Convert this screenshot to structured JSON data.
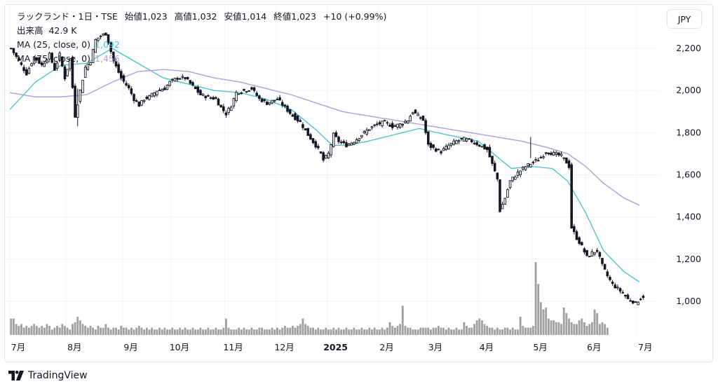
{
  "header": {
    "symbol_title": "ラックランド・1日・TSE",
    "open": "始値1,023",
    "high": "高値1,032",
    "low": "安値1,014",
    "close": "終値1,023",
    "change": "+10 (+0.99%)",
    "volume": "出来高  42.9 K",
    "ma25_label": "MA (25, close, 0)",
    "ma25_value": "1,092",
    "ma75_label": "MA (75, close, 0)",
    "ma75_value": "1,456",
    "currency": "JPY"
  },
  "colors": {
    "ma25": "#4fc3d0",
    "ma75": "#b39ddb",
    "candle": "#131722",
    "volume": "#909090",
    "grid": "#f0f3fa"
  },
  "branding": "TradingView",
  "chart_data": {
    "type": "candlestick",
    "title": "ラックランド・1日・TSE",
    "currency": "JPY",
    "ylim": [
      900,
      2330
    ],
    "y_ticks": [
      1000,
      1200,
      1400,
      1600,
      1800,
      2000,
      2200
    ],
    "y_tick_labels": [
      "1,000",
      "1,200",
      "1,400",
      "1,600",
      "1,800",
      "2,000",
      "2,200"
    ],
    "x_ticks": [
      {
        "label": "7月",
        "bar": 0
      },
      {
        "label": "8月",
        "bar": 22
      },
      {
        "label": "9月",
        "bar": 44
      },
      {
        "label": "10月",
        "bar": 63
      },
      {
        "label": "11月",
        "bar": 84
      },
      {
        "label": "12月",
        "bar": 104
      },
      {
        "label": "2025",
        "bar": 124,
        "bold": true
      },
      {
        "label": "2月",
        "bar": 144
      },
      {
        "label": "3月",
        "bar": 163
      },
      {
        "label": "4月",
        "bar": 183
      },
      {
        "label": "5月",
        "bar": 204
      },
      {
        "label": "6月",
        "bar": 225
      },
      {
        "label": "7月",
        "bar": 245
      }
    ],
    "close_anchors": [
      [
        0,
        2200
      ],
      [
        3,
        2140
      ],
      [
        6,
        2080
      ],
      [
        9,
        2160
      ],
      [
        12,
        2120
      ],
      [
        15,
        2170
      ],
      [
        17,
        2100
      ],
      [
        19,
        2170
      ],
      [
        21,
        2060
      ],
      [
        23,
        2150
      ],
      [
        25,
        1880
      ],
      [
        27,
        2000
      ],
      [
        29,
        2110
      ],
      [
        31,
        2140
      ],
      [
        33,
        2240
      ],
      [
        35,
        2260
      ],
      [
        37,
        2270
      ],
      [
        38,
        2230
      ],
      [
        40,
        2140
      ],
      [
        43,
        2060
      ],
      [
        46,
        2010
      ],
      [
        48,
        1960
      ],
      [
        50,
        1930
      ],
      [
        52,
        1960
      ],
      [
        54,
        1970
      ],
      [
        57,
        2000
      ],
      [
        60,
        2010
      ],
      [
        62,
        2040
      ],
      [
        65,
        2060
      ],
      [
        68,
        2060
      ],
      [
        71,
        2020
      ],
      [
        74,
        1980
      ],
      [
        77,
        1970
      ],
      [
        80,
        1960
      ],
      [
        82,
        1920
      ],
      [
        84,
        1890
      ],
      [
        86,
        1930
      ],
      [
        88,
        1990
      ],
      [
        91,
        2000
      ],
      [
        94,
        2010
      ],
      [
        97,
        1960
      ],
      [
        100,
        1940
      ],
      [
        104,
        1960
      ],
      [
        107,
        1920
      ],
      [
        110,
        1880
      ],
      [
        113,
        1850
      ],
      [
        116,
        1790
      ],
      [
        119,
        1740
      ],
      [
        121,
        1700
      ],
      [
        122,
        1670
      ],
      [
        124,
        1700
      ],
      [
        126,
        1790
      ],
      [
        128,
        1760
      ],
      [
        131,
        1740
      ],
      [
        134,
        1760
      ],
      [
        137,
        1790
      ],
      [
        140,
        1820
      ],
      [
        143,
        1840
      ],
      [
        146,
        1850
      ],
      [
        149,
        1830
      ],
      [
        152,
        1840
      ],
      [
        155,
        1860
      ],
      [
        157,
        1900
      ],
      [
        159,
        1880
      ],
      [
        161,
        1860
      ],
      [
        163,
        1740
      ],
      [
        166,
        1720
      ],
      [
        168,
        1710
      ],
      [
        171,
        1740
      ],
      [
        174,
        1760
      ],
      [
        177,
        1770
      ],
      [
        180,
        1760
      ],
      [
        183,
        1740
      ],
      [
        186,
        1720
      ],
      [
        188,
        1650
      ],
      [
        190,
        1580
      ],
      [
        191,
        1430
      ],
      [
        193,
        1490
      ],
      [
        195,
        1570
      ],
      [
        198,
        1610
      ],
      [
        201,
        1640
      ],
      [
        204,
        1660
      ],
      [
        207,
        1680
      ],
      [
        209,
        1710
      ],
      [
        212,
        1700
      ],
      [
        215,
        1690
      ],
      [
        217,
        1660
      ],
      [
        218,
        1640
      ],
      [
        219,
        1350
      ],
      [
        221,
        1300
      ],
      [
        223,
        1260
      ],
      [
        225,
        1210
      ],
      [
        227,
        1230
      ],
      [
        229,
        1240
      ],
      [
        231,
        1170
      ],
      [
        233,
        1120
      ],
      [
        235,
        1080
      ],
      [
        237,
        1060
      ],
      [
        239,
        1040
      ],
      [
        241,
        1010
      ],
      [
        243,
        1000
      ],
      [
        244,
        990
      ],
      [
        246,
        1015
      ],
      [
        247,
        1023
      ]
    ],
    "candle_volatility": 22,
    "highlight_wicks": [
      {
        "bar": 26,
        "high": 2010,
        "low": 1830
      },
      {
        "bar": 203,
        "high": 1780,
        "low": 1680
      }
    ],
    "series": [
      {
        "name": "MA (25, close, 0)",
        "color": "#4fc3d0",
        "points": [
          [
            0,
            1910
          ],
          [
            10,
            2040
          ],
          [
            20,
            2120
          ],
          [
            30,
            2130
          ],
          [
            40,
            2200
          ],
          [
            50,
            2130
          ],
          [
            60,
            2060
          ],
          [
            70,
            2030
          ],
          [
            80,
            2000
          ],
          [
            90,
            1990
          ],
          [
            100,
            1960
          ],
          [
            110,
            1910
          ],
          [
            120,
            1810
          ],
          [
            126,
            1740
          ],
          [
            132,
            1740
          ],
          [
            140,
            1760
          ],
          [
            150,
            1790
          ],
          [
            160,
            1820
          ],
          [
            167,
            1800
          ],
          [
            175,
            1780
          ],
          [
            183,
            1760
          ],
          [
            190,
            1690
          ],
          [
            196,
            1630
          ],
          [
            204,
            1640
          ],
          [
            212,
            1630
          ],
          [
            218,
            1570
          ],
          [
            225,
            1420
          ],
          [
            232,
            1240
          ],
          [
            240,
            1140
          ],
          [
            246,
            1092
          ]
        ]
      },
      {
        "name": "MA (75, close, 0)",
        "color": "#b39ddb",
        "points": [
          [
            0,
            1990
          ],
          [
            10,
            1970
          ],
          [
            20,
            1970
          ],
          [
            30,
            1980
          ],
          [
            40,
            2040
          ],
          [
            50,
            2090
          ],
          [
            60,
            2100
          ],
          [
            70,
            2090
          ],
          [
            80,
            2060
          ],
          [
            90,
            2040
          ],
          [
            100,
            2010
          ],
          [
            110,
            1980
          ],
          [
            120,
            1940
          ],
          [
            130,
            1900
          ],
          [
            140,
            1880
          ],
          [
            150,
            1860
          ],
          [
            160,
            1840
          ],
          [
            170,
            1820
          ],
          [
            180,
            1800
          ],
          [
            190,
            1780
          ],
          [
            200,
            1760
          ],
          [
            210,
            1730
          ],
          [
            218,
            1700
          ],
          [
            225,
            1640
          ],
          [
            232,
            1560
          ],
          [
            240,
            1490
          ],
          [
            246,
            1456
          ]
        ]
      }
    ],
    "volume": {
      "label": "出来高",
      "last_value": "42.9 K",
      "relative_heights": [
        0.9,
        0.9,
        0.6,
        0.5,
        0.6,
        0.4,
        0.5,
        0.4,
        0.5,
        0.6,
        0.5,
        0.4,
        0.5,
        0.4,
        0.6,
        0.5,
        0.3,
        0.4,
        0.5,
        0.4,
        0.6,
        0.5,
        0.4,
        0.3,
        0.6,
        0.7,
        1.0,
        0.8,
        0.6,
        0.5,
        0.4,
        0.5,
        0.4,
        0.3,
        0.5,
        0.4,
        0.4,
        0.6,
        0.4,
        0.3,
        0.4,
        0.4,
        0.3,
        0.5,
        0.4,
        0.4,
        0.3,
        0.4,
        0.3,
        0.4,
        0.5,
        0.4,
        0.3,
        0.4,
        0.3,
        0.4,
        0.3,
        0.3,
        0.4,
        0.3,
        0.4,
        0.3,
        0.3,
        0.4,
        0.3,
        0.3,
        0.4,
        0.3,
        0.4,
        0.3,
        0.3,
        0.4,
        0.3,
        0.3,
        0.4,
        0.3,
        0.3,
        0.4,
        0.3,
        0.3,
        0.4,
        0.3,
        0.3,
        0.4,
        0.9,
        0.4,
        0.3,
        0.3,
        0.3,
        0.4,
        0.3,
        0.4,
        0.3,
        0.3,
        0.4,
        0.3,
        0.3,
        0.4,
        0.4,
        0.3,
        0.3,
        0.3,
        0.4,
        0.3,
        0.4,
        0.3,
        0.4,
        0.5,
        0.4,
        0.4,
        0.5,
        0.4,
        0.5,
        0.6,
        0.9,
        0.6,
        0.5,
        0.4,
        0.4,
        0.3,
        0.4,
        0.3,
        0.3,
        0.4,
        0.3,
        0.3,
        0.4,
        0.3,
        0.4,
        0.3,
        0.3,
        0.4,
        0.3,
        0.3,
        0.4,
        0.3,
        0.3,
        0.4,
        0.3,
        0.3,
        0.4,
        0.3,
        0.4,
        0.3,
        0.3,
        0.4,
        0.3,
        0.4,
        0.7,
        0.5,
        0.4,
        0.5,
        0.6,
        1.6,
        0.5,
        0.4,
        0.4,
        0.3,
        0.3,
        0.3,
        0.4,
        0.4,
        0.4,
        0.4,
        0.3,
        0.4,
        0.4,
        0.5,
        0.4,
        0.4,
        0.3,
        0.4,
        0.3,
        0.3,
        0.4,
        0.3,
        0.3,
        0.7,
        0.5,
        0.4,
        0.4,
        0.6,
        0.8,
        0.9,
        0.8,
        0.6,
        0.5,
        0.4,
        0.4,
        0.3,
        0.4,
        0.3,
        0.3,
        0.4,
        0.4,
        0.3,
        0.4,
        0.3,
        0.3,
        1.0,
        0.5,
        0.4,
        0.4,
        0.4,
        0.5,
        4.0,
        2.8,
        1.8,
        1.4,
        1.5,
        0.9,
        0.8,
        0.8,
        0.7,
        0.7,
        0.6,
        1.5,
        1.2,
        0.9,
        0.7,
        0.6,
        0.6,
        0.8,
        0.9,
        0.7,
        0.5,
        0.6,
        0.7,
        1.4,
        1.2,
        0.6,
        0.7,
        0.6,
        0.4
      ]
    }
  }
}
